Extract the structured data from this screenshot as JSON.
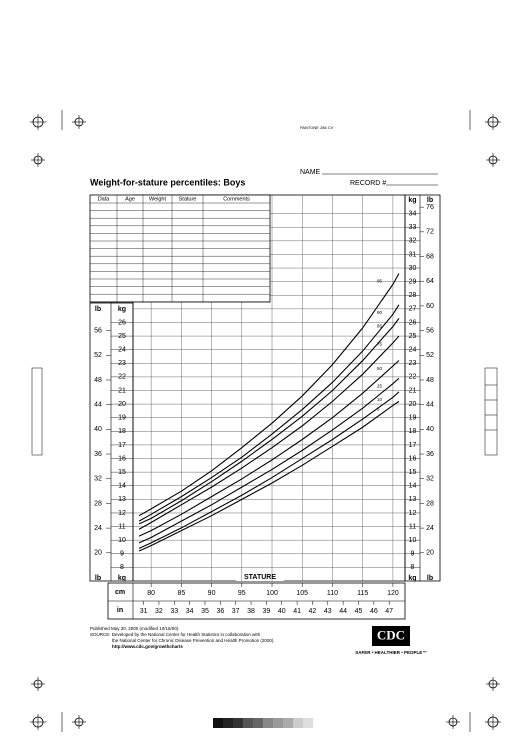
{
  "header": {
    "code": "PANTONE 286 CV",
    "name_label": "NAME",
    "record_label": "RECORD #",
    "title": "Weight-for-stature percentiles: Boys"
  },
  "table": {
    "columns": [
      "Data",
      "Age",
      "Weight",
      "Stature",
      "Comments"
    ]
  },
  "chart_data": {
    "type": "line",
    "x_label": "STATURE",
    "y_unit": "kg",
    "y2_unit": "lb",
    "x_unit": "cm",
    "x2_unit": "in",
    "x": [
      78,
      80,
      85,
      90,
      95,
      100,
      105,
      110,
      115,
      120,
      121
    ],
    "series": [
      {
        "name": "5",
        "color": "#000000",
        "values": [
          9.2,
          9.6,
          10.7,
          11.8,
          13.0,
          14.2,
          15.5,
          16.9,
          18.3,
          19.9,
          20.2
        ]
      },
      {
        "name": "10",
        "color": "#000000",
        "values": [
          9.4,
          9.8,
          10.9,
          12.1,
          13.3,
          14.6,
          16.0,
          17.4,
          18.9,
          20.5,
          20.9
        ]
      },
      {
        "name": "25",
        "color": "#000000",
        "values": [
          9.8,
          10.2,
          11.4,
          12.6,
          13.9,
          15.2,
          16.6,
          18.1,
          19.7,
          21.5,
          21.9
        ]
      },
      {
        "name": "50",
        "color": "#000000",
        "values": [
          10.3,
          10.7,
          11.9,
          13.2,
          14.5,
          15.9,
          17.4,
          19.0,
          20.8,
          22.8,
          23.2
        ]
      },
      {
        "name": "75",
        "color": "#000000",
        "values": [
          10.8,
          11.3,
          12.6,
          13.9,
          15.3,
          16.8,
          18.4,
          20.2,
          22.2,
          24.5,
          25.0
        ]
      },
      {
        "name": "85",
        "color": "#000000",
        "values": [
          11.2,
          11.6,
          12.9,
          14.3,
          15.8,
          17.4,
          19.1,
          21.0,
          23.2,
          25.7,
          26.3
        ]
      },
      {
        "name": "90",
        "color": "#000000",
        "values": [
          11.4,
          11.9,
          13.2,
          14.6,
          16.1,
          17.8,
          19.6,
          21.6,
          23.9,
          26.6,
          27.3
        ]
      },
      {
        "name": "95",
        "color": "#000000",
        "values": [
          11.8,
          12.3,
          13.6,
          15.1,
          16.8,
          18.6,
          20.6,
          22.9,
          25.6,
          28.8,
          29.6
        ]
      }
    ],
    "xlim": [
      77,
      122
    ],
    "xticks": [
      80,
      85,
      90,
      95,
      100,
      105,
      110,
      115,
      120
    ],
    "x2lim": [
      30.31,
      48.03
    ],
    "x2ticks": [
      31,
      32,
      33,
      34,
      35,
      36,
      37,
      38,
      39,
      40,
      41,
      42,
      43,
      44,
      45,
      46,
      47
    ],
    "ylim": [
      7,
      35
    ],
    "yticks": [
      8,
      9,
      10,
      11,
      12,
      13,
      14,
      15,
      16,
      17,
      18,
      19,
      20,
      21,
      22,
      23,
      24,
      25,
      26,
      27,
      28,
      29,
      30,
      31,
      32,
      33,
      34
    ],
    "y2lim": [
      15.43,
      77.16
    ],
    "y2ticks": [
      20,
      24,
      28,
      32,
      36,
      40,
      44,
      48,
      52,
      56,
      60,
      64,
      68,
      72,
      76
    ],
    "grid": true
  },
  "footer": {
    "lines": [
      "Published May 30, 2000 (modified 10/16/00).",
      "SOURCE: Developed by the National Center for Health Statistics in collaboration with",
      "the National Center for Chronic Disease Prevention and Health Promotion (2000).",
      "http://www.cdc.gov/growthcharts"
    ],
    "logo": "CDC",
    "tagline": "SAFER • HEALTHIER • PEOPLE™"
  }
}
